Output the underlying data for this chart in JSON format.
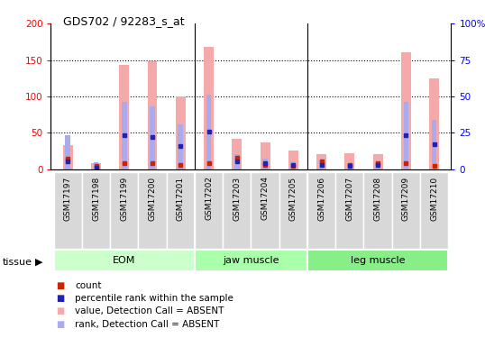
{
  "title": "GDS702 / 92283_s_at",
  "samples": [
    "GSM17197",
    "GSM17198",
    "GSM17199",
    "GSM17200",
    "GSM17201",
    "GSM17202",
    "GSM17203",
    "GSM17204",
    "GSM17205",
    "GSM17206",
    "GSM17207",
    "GSM17208",
    "GSM17209",
    "GSM17210"
  ],
  "value_absent": [
    33,
    8,
    143,
    148,
    100,
    168,
    41,
    36,
    25,
    21,
    22,
    21,
    161,
    125
  ],
  "rank_absent": [
    46,
    9,
    92,
    86,
    62,
    102,
    21,
    14,
    10,
    12,
    8,
    10,
    92,
    68
  ],
  "count_red": [
    14,
    4,
    8,
    8,
    6,
    8,
    16,
    6,
    4,
    10,
    6,
    8,
    8,
    4
  ],
  "percentile_blue": [
    10,
    2,
    46,
    44,
    32,
    52,
    10,
    8,
    6,
    6,
    4,
    6,
    46,
    34
  ],
  "group_dividers": [
    4.5,
    8.5
  ],
  "ylim_left": [
    0,
    200
  ],
  "ylim_right": [
    0,
    100
  ],
  "yticks_left": [
    0,
    50,
    100,
    150,
    200
  ],
  "yticks_right": [
    0,
    25,
    50,
    75,
    100
  ],
  "ytick_labels_right": [
    "0",
    "25",
    "50",
    "75",
    "100%"
  ],
  "color_value_absent": "#F4AAAA",
  "color_rank_absent": "#AAAAEE",
  "color_count": "#CC2200",
  "color_percentile": "#2222AA",
  "plot_bg": "#FFFFFF",
  "bar_width": 0.35,
  "rank_bar_width": 0.18
}
